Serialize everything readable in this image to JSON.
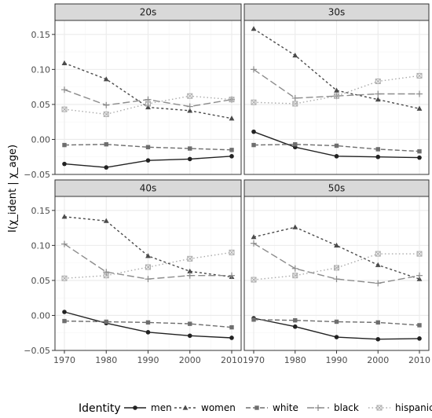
{
  "chart_data": {
    "type": "line",
    "ylabel": "I(χ_ident | χ_age)",
    "x": [
      1970,
      1980,
      1990,
      2000,
      2010
    ],
    "x_ticks": [
      "1970",
      "1980",
      "1990",
      "2000",
      "2010"
    ],
    "y_ticks": [
      "0.15",
      "0.10",
      "0.05",
      "0.00",
      "−0.05"
    ],
    "y_tick_values": [
      0.15,
      0.1,
      0.05,
      0.0,
      -0.05
    ],
    "ylim": [
      -0.05,
      0.17
    ],
    "grid": true,
    "legend": {
      "title": "Identity",
      "position": "bottom",
      "entries": [
        "men",
        "women",
        "white",
        "black",
        "hispanic"
      ]
    },
    "panels": [
      {
        "title": "20s",
        "series": [
          {
            "name": "men",
            "values": [
              -0.035,
              -0.04,
              -0.03,
              -0.028,
              -0.024
            ]
          },
          {
            "name": "women",
            "values": [
              0.109,
              0.086,
              0.046,
              0.041,
              0.03
            ]
          },
          {
            "name": "white",
            "values": [
              -0.008,
              -0.007,
              -0.011,
              -0.013,
              -0.015
            ]
          },
          {
            "name": "black",
            "values": [
              0.071,
              0.049,
              0.057,
              0.047,
              0.057
            ]
          },
          {
            "name": "hispanic",
            "values": [
              0.043,
              0.036,
              0.051,
              0.062,
              0.057
            ]
          }
        ]
      },
      {
        "title": "30s",
        "series": [
          {
            "name": "men",
            "values": [
              0.011,
              -0.011,
              -0.024,
              -0.025,
              -0.026
            ]
          },
          {
            "name": "women",
            "values": [
              0.158,
              0.12,
              0.07,
              0.057,
              0.044
            ]
          },
          {
            "name": "white",
            "values": [
              -0.008,
              -0.007,
              -0.009,
              -0.014,
              -0.017
            ]
          },
          {
            "name": "black",
            "values": [
              0.1,
              0.059,
              0.062,
              0.065,
              0.065
            ]
          },
          {
            "name": "hispanic",
            "values": [
              0.053,
              0.051,
              0.062,
              0.083,
              0.091
            ]
          }
        ]
      },
      {
        "title": "40s",
        "series": [
          {
            "name": "men",
            "values": [
              0.005,
              -0.011,
              -0.024,
              -0.029,
              -0.032
            ]
          },
          {
            "name": "women",
            "values": [
              0.141,
              0.135,
              0.085,
              0.063,
              0.055
            ]
          },
          {
            "name": "white",
            "values": [
              -0.008,
              -0.009,
              -0.01,
              -0.012,
              -0.017
            ]
          },
          {
            "name": "black",
            "values": [
              0.102,
              0.062,
              0.052,
              0.057,
              0.057
            ]
          },
          {
            "name": "hispanic",
            "values": [
              0.053,
              0.057,
              0.069,
              0.081,
              0.09
            ]
          }
        ]
      },
      {
        "title": "50s",
        "series": [
          {
            "name": "men",
            "values": [
              -0.004,
              -0.016,
              -0.031,
              -0.034,
              -0.033
            ]
          },
          {
            "name": "women",
            "values": [
              0.112,
              0.126,
              0.1,
              0.072,
              0.052
            ]
          },
          {
            "name": "white",
            "values": [
              -0.006,
              -0.007,
              -0.009,
              -0.01,
              -0.014
            ]
          },
          {
            "name": "black",
            "values": [
              0.103,
              0.067,
              0.052,
              0.046,
              0.057
            ]
          },
          {
            "name": "hispanic",
            "values": [
              0.051,
              0.057,
              0.068,
              0.088,
              0.088
            ]
          }
        ]
      }
    ]
  },
  "styles": {
    "men": {
      "color": "#222222",
      "dash": "",
      "shape": "circle"
    },
    "women": {
      "color": "#4a4a4a",
      "dash": "3,3",
      "shape": "triangle"
    },
    "white": {
      "color": "#6e6e6e",
      "dash": "6,3",
      "shape": "square"
    },
    "black": {
      "color": "#8c8c8c",
      "dash": "9,4",
      "shape": "plus"
    },
    "hispanic": {
      "color": "#ababab",
      "dash": "1.5,3",
      "shape": "boxx"
    }
  },
  "colors": {
    "panel_bg": "#ffffff",
    "panel_border": "#333333",
    "strip_bg": "#d9d9d9",
    "grid_major": "#ebebeb",
    "grid_minor": "#f5f5f5"
  }
}
